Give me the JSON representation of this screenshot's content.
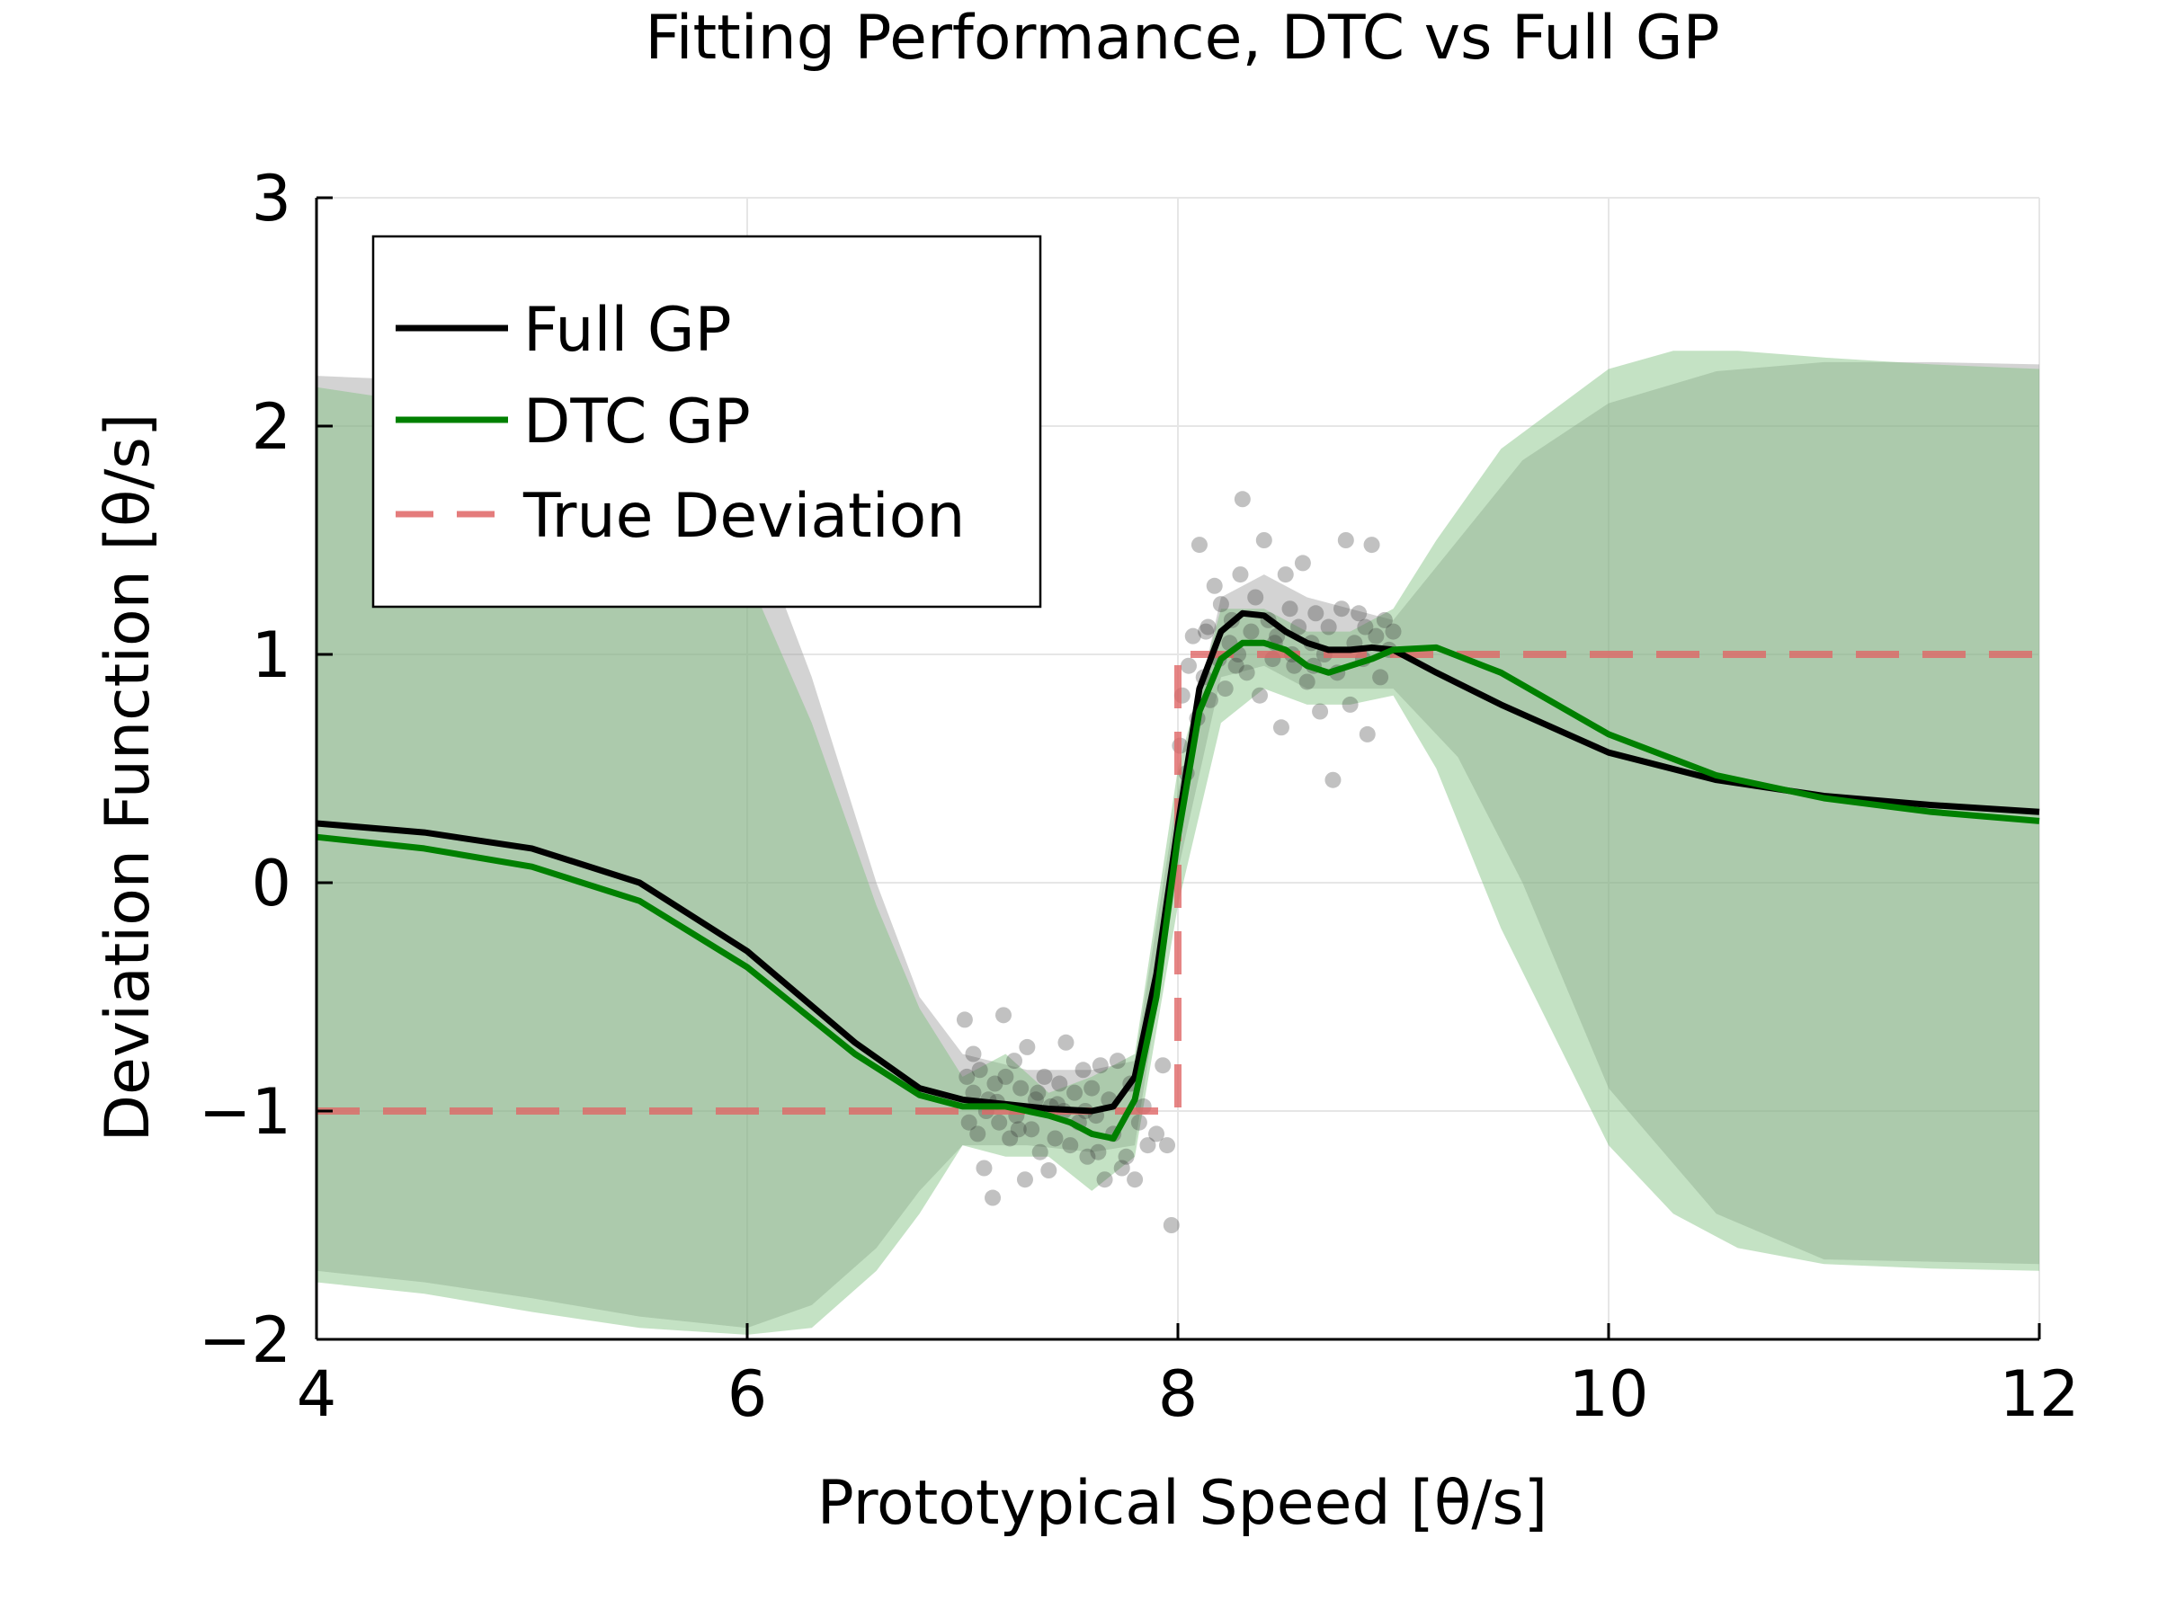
{
  "chart_data": {
    "type": "line",
    "title": "Fitting Performance, DTC vs Full GP",
    "xlabel": "Prototypical Speed [θ/s]",
    "ylabel": "Deviation Function [θ/s]",
    "xlim": [
      4,
      12
    ],
    "ylim": [
      -2,
      3
    ],
    "xticks": [
      4,
      6,
      8,
      10,
      12
    ],
    "xtick_labels": [
      "4",
      "6",
      "8",
      "10",
      "12"
    ],
    "yticks": [
      -2,
      -1,
      0,
      1,
      2,
      3
    ],
    "ytick_labels": [
      "−2",
      "−1",
      "0",
      "1",
      "2",
      "3"
    ],
    "grid": true,
    "legend_position": "top-left",
    "series": [
      {
        "name": "Full GP",
        "color": "#000000",
        "style": "solid",
        "x": [
          4.0,
          4.5,
          5.0,
          5.5,
          6.0,
          6.5,
          6.8,
          7.0,
          7.2,
          7.4,
          7.6,
          7.7,
          7.8,
          7.9,
          8.0,
          8.1,
          8.2,
          8.3,
          8.4,
          8.5,
          8.6,
          8.7,
          8.8,
          8.9,
          9.0,
          9.2,
          9.5,
          10.0,
          10.5,
          11.0,
          11.5,
          12.0
        ],
        "y": [
          0.26,
          0.22,
          0.15,
          0.0,
          -0.3,
          -0.7,
          -0.9,
          -0.95,
          -0.97,
          -0.99,
          -1.0,
          -0.98,
          -0.85,
          -0.4,
          0.25,
          0.85,
          1.1,
          1.18,
          1.17,
          1.1,
          1.05,
          1.02,
          1.02,
          1.03,
          1.02,
          0.92,
          0.78,
          0.57,
          0.45,
          0.38,
          0.34,
          0.31
        ]
      },
      {
        "name": "DTC GP",
        "color": "#008000",
        "style": "solid",
        "x": [
          4.0,
          4.5,
          5.0,
          5.5,
          6.0,
          6.5,
          6.8,
          7.0,
          7.2,
          7.4,
          7.5,
          7.6,
          7.7,
          7.8,
          7.9,
          8.0,
          8.1,
          8.2,
          8.3,
          8.4,
          8.5,
          8.6,
          8.7,
          8.8,
          8.9,
          9.0,
          9.2,
          9.5,
          10.0,
          10.5,
          11.0,
          11.5,
          12.0
        ],
        "y": [
          0.2,
          0.15,
          0.07,
          -0.08,
          -0.37,
          -0.75,
          -0.93,
          -0.98,
          -0.98,
          -1.02,
          -1.05,
          -1.1,
          -1.12,
          -0.95,
          -0.5,
          0.2,
          0.75,
          0.98,
          1.05,
          1.05,
          1.02,
          0.95,
          0.92,
          0.95,
          0.98,
          1.02,
          1.03,
          0.92,
          0.65,
          0.47,
          0.37,
          0.31,
          0.27
        ]
      },
      {
        "name": "True Deviation",
        "color": "#e06666",
        "style": "dashed",
        "x": [
          4.0,
          8.0,
          8.0,
          12.0
        ],
        "y": [
          -1,
          -1,
          1,
          1
        ]
      }
    ],
    "bands": [
      {
        "series": "Full GP",
        "color": "#9e9e9e",
        "x": [
          4.0,
          4.5,
          5.0,
          5.5,
          6.0,
          6.3,
          6.6,
          6.8,
          7.0,
          7.3,
          7.6,
          7.8,
          8.0,
          8.2,
          8.4,
          8.6,
          8.8,
          9.0,
          9.3,
          9.6,
          10.0,
          10.5,
          11.0,
          11.5,
          12.0
        ],
        "upper": [
          2.22,
          2.2,
          2.15,
          2.0,
          1.65,
          0.9,
          0.0,
          -0.5,
          -0.75,
          -0.82,
          -0.82,
          -0.78,
          0.4,
          1.25,
          1.35,
          1.25,
          1.2,
          1.15,
          1.5,
          1.85,
          2.1,
          2.24,
          2.28,
          2.28,
          2.27
        ],
        "lower": [
          -1.7,
          -1.75,
          -1.82,
          -1.9,
          -1.95,
          -1.85,
          -1.6,
          -1.35,
          -1.15,
          -1.15,
          -1.18,
          -1.15,
          0.05,
          0.9,
          0.95,
          0.85,
          0.85,
          0.85,
          0.55,
          0.0,
          -0.9,
          -1.45,
          -1.65,
          -1.66,
          -1.67
        ]
      },
      {
        "series": "DTC GP",
        "color": "#7dbf7d",
        "x": [
          4.0,
          4.5,
          5.0,
          5.5,
          6.0,
          6.3,
          6.6,
          6.8,
          7.0,
          7.2,
          7.4,
          7.6,
          7.8,
          8.0,
          8.2,
          8.4,
          8.6,
          8.8,
          9.0,
          9.2,
          9.5,
          10.0,
          10.3,
          10.6,
          11.0,
          11.5,
          12.0
        ],
        "upper": [
          2.17,
          2.1,
          1.95,
          1.7,
          1.35,
          0.7,
          -0.1,
          -0.55,
          -0.85,
          -0.75,
          -0.92,
          -0.85,
          -0.75,
          0.5,
          1.2,
          1.2,
          1.1,
          1.1,
          1.2,
          1.5,
          1.9,
          2.25,
          2.33,
          2.33,
          2.3,
          2.27,
          2.25
        ],
        "lower": [
          -1.75,
          -1.8,
          -1.88,
          -1.95,
          -1.98,
          -1.95,
          -1.7,
          -1.45,
          -1.15,
          -1.2,
          -1.2,
          -1.35,
          -1.2,
          -0.1,
          0.7,
          0.85,
          0.78,
          0.78,
          0.82,
          0.5,
          -0.2,
          -1.15,
          -1.45,
          -1.6,
          -1.67,
          -1.69,
          -1.7
        ]
      }
    ],
    "scatter": {
      "color": "#333333",
      "points": [
        [
          7.01,
          -0.6
        ],
        [
          7.02,
          -0.85
        ],
        [
          7.03,
          -1.05
        ],
        [
          7.05,
          -0.92
        ],
        [
          7.07,
          -1.1
        ],
        [
          7.08,
          -0.82
        ],
        [
          7.1,
          -1.25
        ],
        [
          7.12,
          -0.95
        ],
        [
          7.14,
          -1.38
        ],
        [
          7.15,
          -0.88
        ],
        [
          7.17,
          -1.05
        ],
        [
          7.19,
          -0.58
        ],
        [
          7.2,
          -0.85
        ],
        [
          7.22,
          -1.12
        ],
        [
          7.24,
          -0.78
        ],
        [
          7.25,
          -1.02
        ],
        [
          7.27,
          -0.9
        ],
        [
          7.29,
          -1.3
        ],
        [
          7.3,
          -0.72
        ],
        [
          7.32,
          -1.08
        ],
        [
          7.34,
          -0.95
        ],
        [
          7.36,
          -1.18
        ],
        [
          7.38,
          -0.85
        ],
        [
          7.4,
          -1.26
        ],
        [
          7.41,
          -0.98
        ],
        [
          7.43,
          -1.12
        ],
        [
          7.45,
          -0.88
        ],
        [
          7.47,
          -1.0
        ],
        [
          7.48,
          -0.7
        ],
        [
          7.5,
          -1.15
        ],
        [
          7.52,
          -0.92
        ],
        [
          7.54,
          -1.05
        ],
        [
          7.56,
          -0.82
        ],
        [
          7.58,
          -1.2
        ],
        [
          7.6,
          -0.9
        ],
        [
          7.62,
          -1.02
        ],
        [
          7.64,
          -0.8
        ],
        [
          7.66,
          -1.3
        ],
        [
          7.68,
          -0.95
        ],
        [
          7.7,
          -1.1
        ],
        [
          7.72,
          -0.78
        ],
        [
          7.74,
          -1.25
        ],
        [
          7.76,
          -1.2
        ],
        [
          7.78,
          -0.88
        ],
        [
          7.8,
          -1.3
        ],
        [
          7.82,
          -1.05
        ],
        [
          7.84,
          -0.98
        ],
        [
          7.86,
          -1.15
        ],
        [
          7.9,
          -1.1
        ],
        [
          7.93,
          -0.8
        ],
        [
          7.95,
          -1.15
        ],
        [
          7.97,
          -1.5
        ],
        [
          7.05,
          -0.75
        ],
        [
          7.11,
          -1.0
        ],
        [
          7.26,
          -1.08
        ],
        [
          7.44,
          -0.97
        ],
        [
          7.57,
          -1.0
        ],
        [
          7.35,
          -0.92
        ],
        [
          7.63,
          -1.18
        ],
        [
          7.16,
          -0.96
        ],
        [
          8.01,
          0.6
        ],
        [
          8.02,
          0.82
        ],
        [
          8.04,
          0.48
        ],
        [
          8.05,
          0.95
        ],
        [
          8.07,
          1.08
        ],
        [
          8.09,
          0.72
        ],
        [
          8.1,
          1.48
        ],
        [
          8.12,
          0.9
        ],
        [
          8.14,
          1.12
        ],
        [
          8.15,
          0.8
        ],
        [
          8.17,
          1.3
        ],
        [
          8.19,
          0.98
        ],
        [
          8.2,
          1.22
        ],
        [
          8.22,
          0.85
        ],
        [
          8.24,
          1.05
        ],
        [
          8.25,
          1.15
        ],
        [
          8.27,
          0.95
        ],
        [
          8.29,
          1.35
        ],
        [
          8.3,
          1.68
        ],
        [
          8.32,
          0.92
        ],
        [
          8.34,
          1.1
        ],
        [
          8.36,
          1.25
        ],
        [
          8.38,
          0.82
        ],
        [
          8.4,
          1.5
        ],
        [
          8.42,
          1.15
        ],
        [
          8.44,
          0.98
        ],
        [
          8.46,
          1.08
        ],
        [
          8.48,
          0.68
        ],
        [
          8.5,
          1.35
        ],
        [
          8.52,
          1.2
        ],
        [
          8.54,
          0.95
        ],
        [
          8.56,
          1.12
        ],
        [
          8.58,
          1.4
        ],
        [
          8.6,
          0.88
        ],
        [
          8.62,
          1.05
        ],
        [
          8.64,
          1.18
        ],
        [
          8.66,
          0.75
        ],
        [
          8.68,
          1.0
        ],
        [
          8.7,
          1.12
        ],
        [
          8.72,
          0.45
        ],
        [
          8.74,
          0.92
        ],
        [
          8.76,
          1.2
        ],
        [
          8.78,
          1.5
        ],
        [
          8.8,
          0.78
        ],
        [
          8.82,
          1.05
        ],
        [
          8.84,
          1.18
        ],
        [
          8.86,
          0.98
        ],
        [
          8.88,
          0.65
        ],
        [
          8.9,
          1.48
        ],
        [
          8.92,
          1.08
        ],
        [
          8.94,
          0.9
        ],
        [
          8.96,
          1.15
        ],
        [
          8.98,
          1.02
        ],
        [
          9.0,
          1.1
        ],
        [
          8.28,
          1.0
        ],
        [
          8.45,
          1.05
        ],
        [
          8.63,
          0.95
        ],
        [
          8.87,
          1.12
        ],
        [
          8.13,
          1.1
        ],
        [
          8.53,
          1.0
        ]
      ]
    }
  }
}
